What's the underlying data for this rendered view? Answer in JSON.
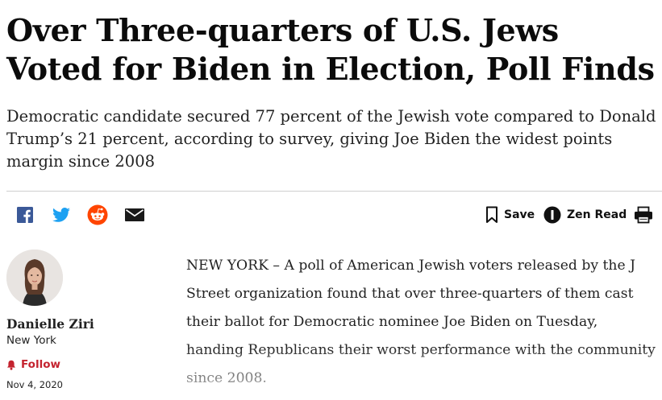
{
  "article": {
    "headline": "Over Three-quarters of U.S. Jews Voted for Biden in Election, Poll Finds",
    "subheadline": "Democratic candidate secured 77 percent of the Jewish vote compared to Donald Trump’s 21 percent, according to survey, giving Joe Biden the widest points margin since 2008",
    "body": "NEW YORK – A poll of American Jewish voters released by the J Street organization found that over three-quarters of them cast their ballot for Democratic nominee Joe Biden on Tuesday, handing Republicans their worst performance with the community since 2008."
  },
  "share": {
    "icons": [
      "facebook-icon",
      "twitter-icon",
      "reddit-icon",
      "email-icon"
    ],
    "colors": {
      "facebook": "#3b5998",
      "twitter": "#1da1f2",
      "reddit": "#ff4500",
      "email": "#1a1a1a"
    }
  },
  "toolbar": {
    "save_label": "Save",
    "zen_label": "Zen Read",
    "print_icon": "printer-icon"
  },
  "author": {
    "name": "Danielle Ziri",
    "location": "New York",
    "follow_label": "Follow",
    "follow_color": "#c4232f",
    "date": "Nov 4, 2020"
  }
}
